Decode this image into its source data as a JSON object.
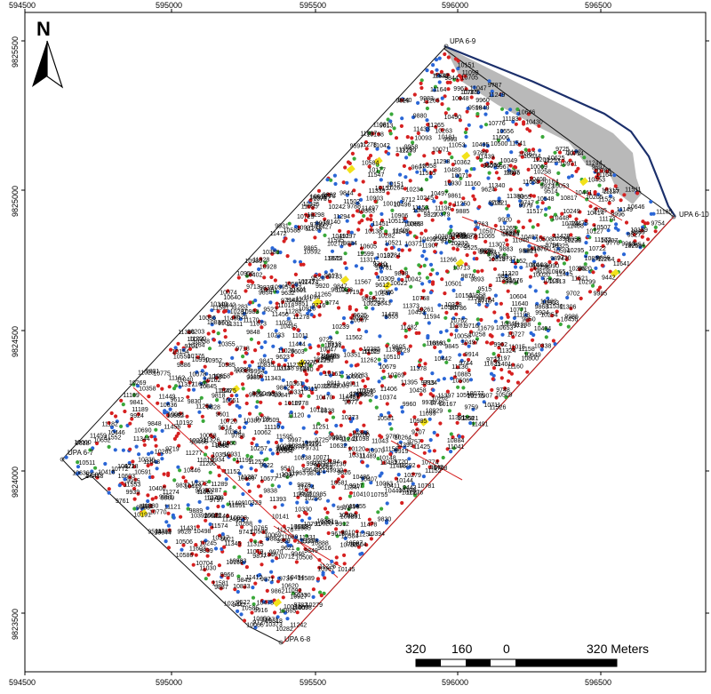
{
  "map": {
    "x_ticks": [
      "594500",
      "595000",
      "595500",
      "596000",
      "596500"
    ],
    "y_ticks": [
      "9825500",
      "9825000",
      "9824500",
      "9824000",
      "9823500"
    ],
    "corner_labels": [
      "UPA 6-9",
      "UPA 6-10",
      "UPA 6-7",
      "UPA 6-8"
    ],
    "north_arrow": {
      "label": "N",
      "icon": "north-arrow-icon"
    },
    "scale_bar": {
      "labels": [
        "320",
        "160",
        "0",
        "320 Meters"
      ]
    },
    "colors": {
      "red": "#d62020",
      "blue": "#2a66d6",
      "green": "#3aa83a",
      "yellow": "#f2e21a",
      "boundary": "#111111",
      "river": "#1b2f6b",
      "river_fill": "#b9b9b9",
      "inner_line": "#d62020"
    },
    "tree_labels": [
      "11553",
      "11459",
      "11482",
      "11456",
      "11552",
      "11558",
      "11560",
      "11625",
      "11343",
      "11451",
      "11455",
      "11562",
      "11619",
      "11621",
      "11460",
      "11547",
      "11566",
      "11339",
      "11340",
      "11449",
      "11338",
      "11446",
      "11447",
      "11541",
      "11567",
      "11640",
      "11244",
      "11346",
      "11345",
      "11444",
      "11641",
      "11573",
      "11642",
      "11679",
      "11243",
      "11242",
      "11153",
      "11249",
      "11253",
      "11347",
      "11439",
      "11572",
      "11574",
      "11673",
      "11674",
      "11126",
      "11149",
      "11252",
      "11254",
      "11326",
      "11431",
      "11433",
      "11471",
      "11585",
      "11648",
      "11907",
      "11250",
      "11257",
      "11331",
      "11472",
      "11478",
      "11581",
      "11606",
      "11010",
      "11011",
      "11015",
      "11120",
      "11265",
      "11320",
      "11321",
      "11428",
      "11473",
      "11475",
      "11609",
      "10990",
      "10995",
      "11018",
      "11140",
      "11220",
      "11266",
      "11317",
      "11328",
      "11427",
      "11456",
      "11482",
      "11523",
      "11526",
      "11530",
      "11601",
      "11603",
      "10646",
      "10983",
      "11026",
      "11028",
      "11030",
      "11121",
      "11200",
      "11226",
      "11311",
      "11313",
      "11315",
      "11344",
      "11415",
      "11478",
      "11519",
      "11520",
      "11521",
      "11591",
      "11592",
      "11594",
      "10700",
      "10847",
      "10854",
      "10903",
      "10983",
      "11021",
      "11140",
      "11152",
      "11264",
      "11265",
      "11311",
      "11313",
      "11324",
      "11378",
      "11401",
      "11412",
      "11497",
      "11515",
      "10590",
      "10699",
      "10705",
      "10845",
      "10882",
      "10885",
      "11028",
      "11152",
      "11278",
      "11281",
      "11373",
      "11423",
      "11425",
      "11491",
      "11493",
      "11589",
      "11591",
      "11595",
      "10704",
      "10711",
      "10713",
      "10755",
      "10865",
      "10863",
      "10985",
      "11105",
      "11158",
      "11197",
      "11276",
      "11277",
      "11306",
      "11377",
      "11424",
      "11482",
      "11511",
      "11517",
      "11597",
      "10448",
      "10585",
      "10712",
      "10714",
      "10888",
      "10897",
      "11092",
      "11196",
      "11278",
      "11389",
      "11498",
      "11502",
      "11599",
      "11601",
      "10446",
      "10449",
      "10580",
      "10688",
      "10690",
      "10865",
      "10903",
      "11094",
      "11189",
      "11195",
      "11289",
      "11307",
      "11398",
      "11409",
      "11488",
      "11489",
      "11595",
      "10453",
      "10585",
      "10591",
      "10594",
      "10720",
      "10837",
      "10884",
      "10970",
      "10971",
      "11098",
      "11110",
      "11191",
      "11297",
      "11298",
      "11393",
      "11406",
      "11408",
      "10441",
      "10446",
      "10581",
      "10584",
      "10592",
      "10722",
      "10724",
      "10835",
      "10838",
      "10967",
      "11098",
      "11183",
      "11189",
      "11192",
      "11194",
      "11283",
      "11292",
      "11294",
      "11296",
      "11397",
      "11399",
      "10307",
      "10315",
      "10440",
      "10442",
      "10500",
      "10588",
      "10710",
      "10725",
      "10842",
      "10845",
      "10980",
      "11035",
      "11087",
      "11089",
      "11182",
      "11185",
      "11287",
      "11289",
      "11391",
      "10192",
      "10311",
      "10451",
      "10581",
      "10586",
      "10593",
      "10730",
      "10833",
      "10952",
      "11040",
      "11043",
      "11049",
      "11099",
      "11174",
      "11179",
      "11282",
      "11288",
      "11391",
      "10298",
      "10309",
      "10317",
      "10456",
      "10585",
      "10629",
      "10817",
      "10844",
      "10948",
      "11076",
      "11079",
      "11081",
      "11108",
      "11164",
      "11170",
      "11273",
      "11276",
      "11386",
      "10058",
      "10167",
      "10295",
      "10318",
      "10331",
      "10461",
      "10465",
      "10556",
      "10604",
      "10727",
      "10956",
      "10985",
      "11095",
      "11097",
      "11160",
      "11162",
      "11266",
      "11274",
      "11375",
      "10177",
      "10191",
      "10193",
      "10289",
      "10319",
      "10453",
      "10458",
      "10475",
      "10597",
      "10703",
      "10737",
      "10818",
      "10898",
      "11005",
      "11053",
      "11063",
      "11156",
      "11164",
      "11265",
      "11380",
      "11395",
      "9951",
      "10058",
      "10071",
      "10177",
      "10195",
      "10205",
      "10330",
      "10414",
      "10470",
      "10475",
      "10581",
      "10584",
      "10667",
      "10883",
      "10904",
      "11058",
      "11150",
      "11160",
      "11259",
      "11378",
      "9946",
      "9839",
      "10049",
      "10053",
      "10071",
      "10189",
      "10203",
      "10338",
      "10421",
      "10548",
      "10550",
      "10605",
      "10667",
      "10679",
      "10774",
      "10788",
      "10930",
      "11057",
      "11065",
      "11148",
      "11152",
      "11250",
      "11365",
      "9844",
      "9843",
      "9837",
      "9957",
      "9958",
      "10042",
      "10047",
      "10074",
      "10181",
      "10288",
      "10325",
      "10330",
      "10418",
      "10430",
      "10521",
      "10653",
      "10660",
      "10723",
      "10770",
      "10775",
      "10781",
      "10790",
      "10927",
      "10929",
      "11048",
      "11136",
      "11137",
      "11256",
      "11262",
      "11375",
      "9849",
      "9737",
      "9960",
      "9962",
      "10051",
      "10058",
      "10074",
      "10275",
      "10284",
      "10299",
      "10328",
      "10329",
      "10411",
      "10510",
      "10519",
      "10652",
      "10659",
      "10765",
      "10781",
      "10906",
      "10921",
      "10928",
      "10931",
      "11047",
      "11152",
      "11146",
      "11265",
      "11380",
      "9845",
      "9831",
      "9833",
      "9843",
      "9955",
      "9961",
      "10069",
      "10073",
      "10277",
      "10288",
      "10324",
      "10400",
      "10507",
      "10512",
      "10620",
      "10648",
      "10660",
      "10762",
      "10776",
      "10908",
      "10910",
      "11051",
      "11251",
      "9841",
      "9836",
      "9838",
      "9852",
      "9958",
      "9960",
      "10063",
      "10071",
      "10163",
      "10164",
      "10270",
      "10279",
      "10283",
      "10313",
      "10408",
      "10413",
      "10509",
      "10620",
      "10646",
      "10658",
      "10768",
      "10776",
      "10784",
      "10785",
      "10790",
      "10800",
      "10914",
      "10920",
      "11042",
      "11244",
      "9731",
      "9850",
      "9851",
      "9854",
      "9860",
      "9964",
      "10061",
      "10077",
      "10157",
      "10161",
      "10264",
      "10265",
      "10269",
      "10282",
      "10288",
      "10402",
      "10410",
      "10481",
      "10491",
      "10506",
      "10511",
      "10622",
      "10644",
      "10677",
      "10769",
      "10791",
      "10911",
      "11041",
      "9626",
      "9724",
      "9733",
      "9730",
      "9830",
      "9847",
      "9849",
      "9848",
      "9960",
      "9966",
      "10062",
      "10078",
      "10154",
      "10162",
      "10263",
      "10268",
      "10273",
      "10278",
      "10279",
      "10386",
      "10398",
      "10407",
      "10487",
      "10494",
      "10504",
      "10508",
      "10603",
      "10634",
      "10636",
      "10640",
      "10649",
      "10771",
      "10772",
      "10778",
      "10786",
      "9523",
      "9526",
      "9625",
      "9632",
      "9728",
      "9834",
      "9838",
      "9849",
      "9961",
      "9967",
      "10066",
      "10069",
      "10151",
      "10151",
      "10261",
      "10266",
      "10270",
      "10282",
      "10287",
      "10328",
      "10338",
      "10361",
      "10364",
      "10380",
      "10392",
      "10486",
      "10490",
      "10495",
      "10497",
      "10500",
      "10503",
      "10508",
      "10509",
      "10636",
      "10637",
      "10641",
      "10776",
      "9527",
      "9621",
      "9627",
      "9629",
      "9720",
      "9722",
      "9736",
      "9859",
      "9861",
      "9867",
      "9965",
      "9971",
      "10069",
      "10150",
      "10239",
      "10232",
      "10264",
      "10287",
      "10367",
      "10371",
      "10376",
      "10489",
      "10499",
      "10505",
      "10507",
      "10612",
      "10625",
      "10632",
      "9520",
      "9522",
      "9525",
      "9530",
      "9614",
      "9619",
      "9623",
      "9716",
      "9719",
      "9722",
      "9735",
      "9741",
      "9824",
      "9827",
      "9830",
      "9839",
      "9847",
      "9862",
      "9970",
      "10020",
      "10149",
      "10154",
      "10233",
      "10238",
      "10255",
      "10263",
      "10358",
      "10365",
      "10372",
      "10374",
      "10378",
      "10389",
      "10494",
      "10496",
      "10498",
      "10501",
      "10506",
      "10508",
      "9524",
      "9529",
      "9618",
      "9620",
      "9624",
      "9628",
      "9712",
      "9715",
      "9719",
      "9725",
      "9731",
      "9744",
      "9748",
      "9826",
      "9828",
      "9844",
      "9855",
      "9865",
      "10072",
      "10086",
      "10089",
      "10093",
      "10144",
      "10145",
      "10146",
      "10148",
      "10236",
      "10242",
      "10245",
      "10258",
      "10262",
      "10264",
      "10354",
      "10355",
      "10363",
      "10373",
      "10379",
      "10381",
      "10385",
      "10394",
      "10495",
      "10497",
      "10499",
      "9519",
      "9528",
      "9613",
      "9616",
      "9615",
      "9717",
      "9727",
      "9729",
      "9739",
      "9745",
      "9819",
      "9821",
      "9920",
      "9924",
      "9928",
      "9930",
      "9931",
      "9979",
      "9983",
      "9985",
      "10010",
      "10098",
      "10138",
      "10140",
      "10141",
      "10147",
      "10233",
      "10234",
      "10249",
      "10351",
      "10352",
      "10362",
      "10364",
      "9440",
      "9442",
      "9514",
      "9515",
      "9517",
      "9605",
      "9607",
      "9610",
      "9612",
      "9713",
      "9716",
      "9718",
      "9725",
      "9728",
      "9753",
      "9754",
      "9756",
      "9757",
      "9758",
      "9759",
      "9761",
      "9764",
      "9778",
      "9787",
      "9789",
      "9818",
      "9820",
      "9830",
      "9831",
      "9838",
      "9848",
      "9862",
      "9883",
      "9884",
      "9887",
      "9889",
      "9912",
      "9915",
      "9919",
      "9921",
      "9922",
      "9925",
      "9930",
      "9939",
      "9977",
      "9982",
      "9983",
      "9986",
      "9991",
      "9994",
      "10132",
      "10138",
      "10140",
      "10245",
      "10251",
      "10254",
      "10256",
      "10257",
      "10258",
      "10262",
      "10263",
      "9442",
      "9443",
      "9509",
      "9510",
      "9513",
      "9514",
      "9597",
      "9601",
      "9603",
      "9607",
      "9612",
      "9617",
      "9697",
      "9701",
      "9702",
      "9705",
      "9707",
      "9710",
      "9711",
      "9763",
      "9768",
      "9770",
      "9774",
      "9780",
      "9782",
      "9785",
      "9788",
      "9794",
      "9797",
      "9866",
      "9868",
      "9871",
      "9873",
      "9874",
      "9876",
      "9877",
      "9878",
      "9880",
      "9885",
      "9886",
      "9887",
      "9889",
      "9893",
      "9901",
      "9904",
      "9907",
      "9908",
      "9909",
      "9911",
      "9913",
      "9914",
      "9916",
      "9917",
      "9918",
      "9920",
      "9923",
      "9924",
      "9934",
      "9935",
      "9937",
      "9938",
      "9985",
      "9986",
      "9989",
      "9990",
      "9992",
      "9994",
      "9996",
      "9997",
      "9999",
      "10119",
      "10120",
      "10121",
      "10127",
      "10130",
      "10131"
    ]
  }
}
